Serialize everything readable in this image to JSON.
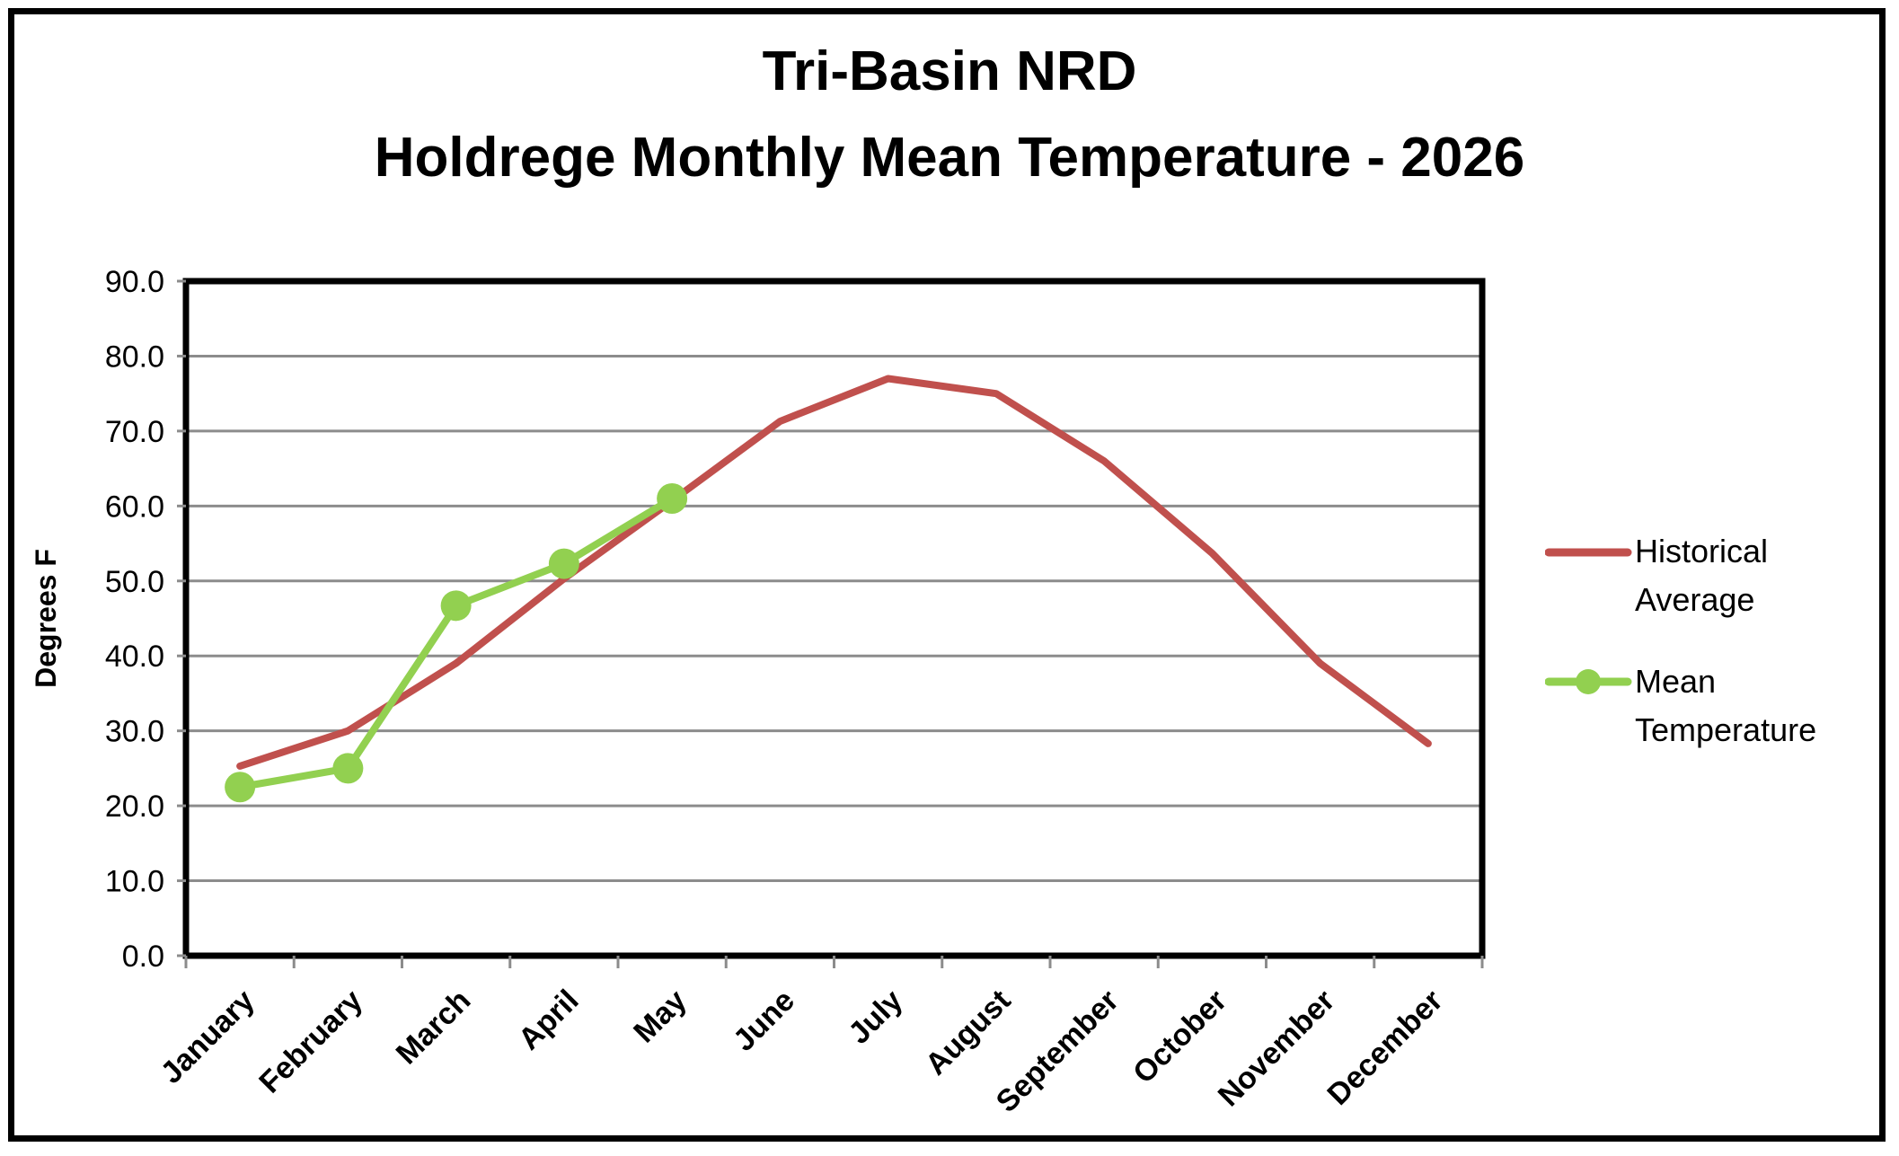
{
  "chart_data": {
    "type": "line",
    "title": "Tri-Basin NRD",
    "subtitle": "Holdrege Monthly Mean Temperature - 2026",
    "ylabel": "Degrees F",
    "xlabel": "",
    "ylim": [
      0,
      90
    ],
    "yticks": [
      "0.0",
      "10.0",
      "20.0",
      "30.0",
      "40.0",
      "50.0",
      "60.0",
      "70.0",
      "80.0",
      "90.0"
    ],
    "grid": true,
    "legend_position": "right",
    "categories": [
      "January",
      "February",
      "March",
      "April",
      "May",
      "June",
      "July",
      "August",
      "September",
      "October",
      "November",
      "December"
    ],
    "series": [
      {
        "name": "Historical Average",
        "color": "#c0504d",
        "markers": false,
        "values": [
          25.3,
          30.0,
          39.0,
          50.3,
          60.7,
          71.3,
          77.0,
          75.0,
          66.0,
          53.7,
          39.0,
          28.3
        ]
      },
      {
        "name": "Mean Temperature",
        "color": "#92d050",
        "markers": true,
        "values": [
          22.5,
          25.0,
          46.7,
          52.3,
          61.0,
          null,
          null,
          null,
          null,
          null,
          null,
          null
        ]
      }
    ]
  },
  "legend": {
    "historical_line1": "Historical",
    "historical_line2": "Average",
    "mean_line1": "Mean",
    "mean_line2": "Temperature"
  }
}
